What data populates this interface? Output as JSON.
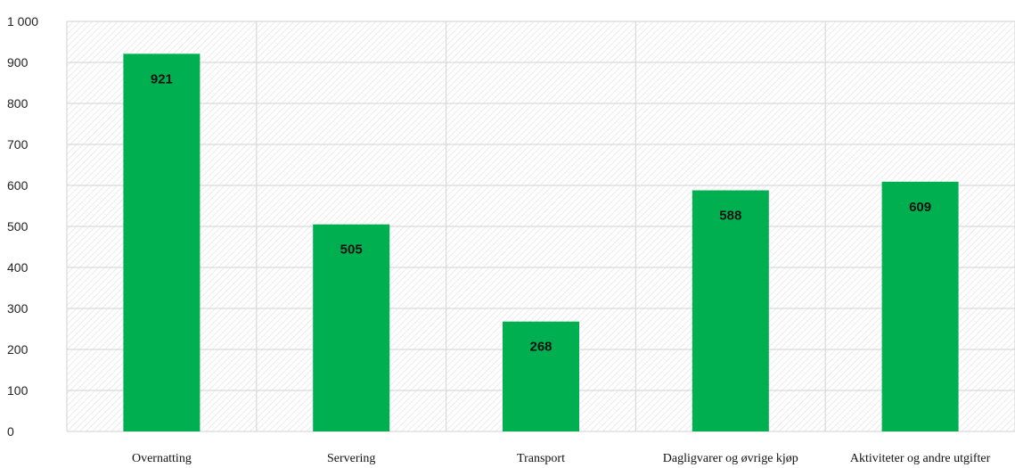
{
  "chart_data": {
    "type": "bar",
    "title": "",
    "xlabel": "",
    "ylabel": "",
    "categories": [
      "Overnatting",
      "Servering",
      "Transport",
      "Dagligvarer og øvrige kjøp",
      "Aktiviteter og andre utgifter"
    ],
    "values": [
      921,
      505,
      268,
      588,
      609
    ],
    "ylim": [
      0,
      1000
    ],
    "yticks": [
      0,
      100,
      200,
      300,
      400,
      500,
      600,
      700,
      800,
      900,
      1000
    ],
    "ytick_labels": [
      "0",
      "100",
      "200",
      "300",
      "400",
      "500",
      "600",
      "700",
      "800",
      "900",
      "1 000"
    ],
    "data_labels": [
      "921",
      "505",
      "268",
      "588",
      "609"
    ],
    "grid": true,
    "legend": "none",
    "bar_color": "#00b050",
    "grid_color": "#d9d9d9",
    "background_pattern": "diagonal-hatch-light-gray"
  }
}
